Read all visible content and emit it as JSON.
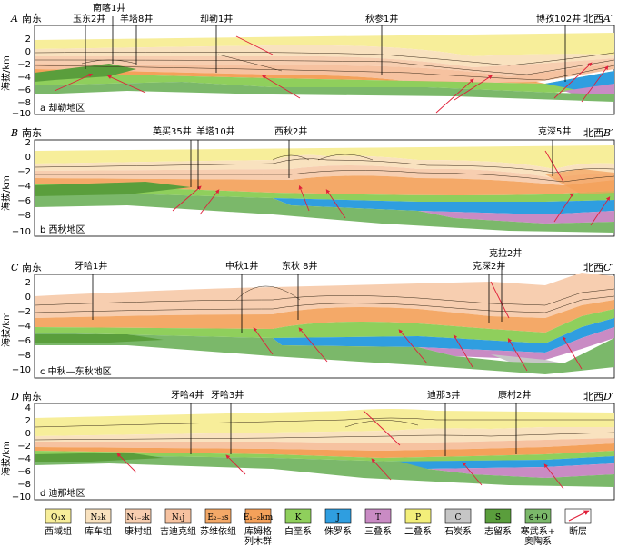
{
  "axis_title": "海拔/km",
  "tick_labels": [
    "4",
    "2",
    "0",
    "−2",
    "−4",
    "−6",
    "−8",
    "−10"
  ],
  "panels": [
    {
      "id": "a",
      "start": "A",
      "end": "A′",
      "dir_left": "南东",
      "dir_right": "北西",
      "caption": "a 却勒地区",
      "ticks": [
        "2",
        "0",
        "−2",
        "−4",
        "−6",
        "−8",
        "−10"
      ],
      "wells": [
        "南喀1井",
        "玉东2井",
        "羊塔8井",
        "却勒1井",
        "秋参1井",
        "博孜102井"
      ]
    },
    {
      "id": "b",
      "start": "B",
      "end": "B′",
      "dir_left": "南东",
      "dir_right": "北西",
      "caption": "b 西秋地区",
      "ticks": [
        "2",
        "0",
        "−2",
        "−4",
        "−6",
        "−8",
        "−10"
      ],
      "wells": [
        "英买35井",
        "羊塔10井",
        "西秋2井",
        "克深5井"
      ]
    },
    {
      "id": "c",
      "start": "C",
      "end": "C′",
      "dir_left": "南东",
      "dir_right": "北西",
      "caption": "c 中秋—东秋地区",
      "ticks": [
        "2",
        "0",
        "−2",
        "−4",
        "−6",
        "−8",
        "−10"
      ],
      "wells": [
        "牙哈1井",
        "中秋1井",
        "东秋 8井",
        "克拉2井",
        "克深2井"
      ]
    },
    {
      "id": "d",
      "start": "D",
      "end": "D′",
      "dir_left": "南东",
      "dir_right": "北西",
      "caption": "d 迪那地区",
      "ticks": [
        "4",
        "2",
        "0",
        "−2",
        "−4",
        "−6",
        "−8",
        "−10"
      ],
      "wells": [
        "牙哈4井",
        "牙哈3井",
        "迪那3井",
        "康村2井"
      ]
    }
  ],
  "legend": [
    {
      "code": "Q₁x",
      "name": "西域组",
      "color": "#f7ee9a"
    },
    {
      "code": "N₂k",
      "name": "库车组",
      "color": "#f9e2bf"
    },
    {
      "code": "N₁₋₂k",
      "name": "康村组",
      "color": "#f7ceb0"
    },
    {
      "code": "N₁j",
      "name": "吉迪克组",
      "color": "#f6c2a0"
    },
    {
      "code": "E₂₋₃s",
      "name": "苏维依组",
      "color": "#f4a968"
    },
    {
      "code": "E₁₋₂km",
      "name": "库姆格\n列木群",
      "color": "#f4a15a"
    },
    {
      "code": "K",
      "name": "白垩系",
      "color": "#8fcf5c"
    },
    {
      "code": "J",
      "name": "侏罗系",
      "color": "#2f9ee0"
    },
    {
      "code": "T",
      "name": "三叠系",
      "color": "#c98bc4"
    },
    {
      "code": "P",
      "name": "二叠系",
      "color": "#f3ef7a"
    },
    {
      "code": "C",
      "name": "石炭系",
      "color": "#c6c6c6"
    },
    {
      "code": "S",
      "name": "志留系",
      "color": "#5a9e3c"
    },
    {
      "code": "∈+O",
      "name": "寒武系+\n奥陶系",
      "color": "#7bb86a"
    },
    {
      "code": "",
      "name": "断层",
      "color": "#e0203a"
    }
  ]
}
